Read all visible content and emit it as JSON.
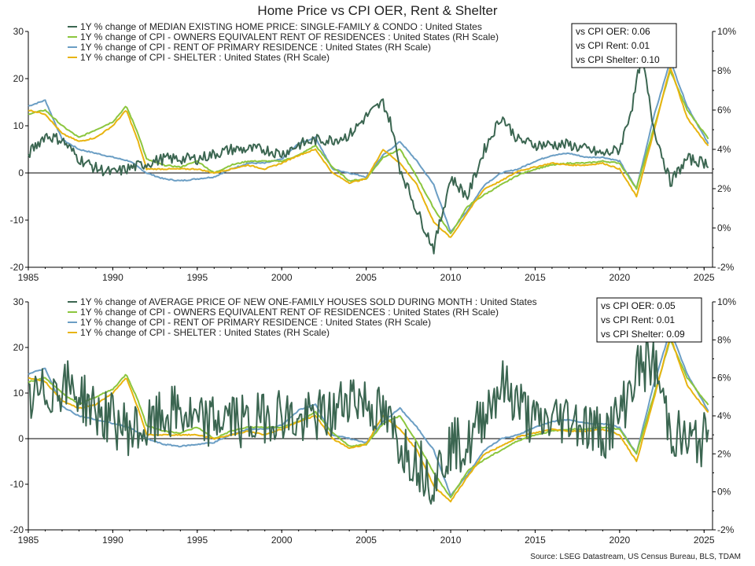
{
  "title": "Home Price vs CPI OER, Rent & Shelter",
  "source": "Source: LSEG Datastream, US Census Bureau, BLS, TDAM",
  "colors": {
    "home": "#3b6651",
    "oer": "#8cc63e",
    "rent": "#6b9ec4",
    "shelter": "#e8b410",
    "zero": "#000000"
  },
  "chart_data": [
    {
      "type": "line",
      "title": "",
      "xlabel": "",
      "ylabel": "",
      "xlim": [
        1985,
        2025.5
      ],
      "ylim": [
        -20,
        30
      ],
      "ylim_right": [
        -2,
        10
      ],
      "x_ticks": [
        "1985",
        "1990",
        "1995",
        "2000",
        "2005",
        "2010",
        "2015",
        "2020",
        "2025"
      ],
      "y_ticks_left": [
        "30",
        "20",
        "10",
        "0",
        "-10",
        "-20"
      ],
      "y_ticks_right": [
        "10%",
        "8%",
        "6%",
        "4%",
        "2%",
        "0%",
        "-2%"
      ],
      "legend": [
        {
          "label": "1Y % change of MEDIAN EXISTING HOME PRICE: SINGLE-FAMILY & CONDO : United States",
          "key": "home"
        },
        {
          "label": "1Y % change of CPI - OWNERS EQUIVALENT RENT OF RESIDENCES : United States (RH Scale)",
          "key": "oer"
        },
        {
          "label": "1Y % change of CPI - RENT OF PRIMARY RESIDENCE : United States (RH Scale)",
          "key": "rent"
        },
        {
          "label": "1Y % change of CPI - SHELTER : United States (RH Scale)",
          "key": "shelter"
        }
      ],
      "correlations": [
        "vs CPI OER: 0.06",
        "vs CPI Rent: 0.01",
        "vs CPI Shelter: 0.10"
      ],
      "series": [
        {
          "key": "home",
          "axis": "left",
          "noise": 1.2,
          "x": [
            1985,
            1986,
            1987,
            1988,
            1989,
            1990,
            1991,
            1992,
            1993,
            1994,
            1995,
            1996,
            1997,
            1998,
            1999,
            2000,
            2001,
            2002,
            2003,
            2004,
            2005,
            2006,
            2006.5,
            2007,
            2008,
            2009,
            2010,
            2011,
            2012,
            2013,
            2014,
            2015,
            2016,
            2017,
            2018,
            2019,
            2020,
            2020.8,
            2021.3,
            2022,
            2023,
            2024,
            2025.3
          ],
          "y": [
            4,
            8,
            7,
            3,
            1,
            0,
            1,
            2,
            3,
            3,
            3,
            4,
            5,
            5,
            5,
            4,
            6,
            7,
            7,
            8,
            12,
            15,
            10,
            1,
            -8,
            -16,
            -1,
            -5,
            5,
            12,
            7,
            6,
            6,
            6,
            5,
            4,
            5,
            15,
            25,
            10,
            -2,
            3,
            2
          ]
        },
        {
          "key": "oer",
          "axis": "right",
          "x": [
            1985,
            1986,
            1987,
            1988,
            1989,
            1990,
            1990.8,
            1991.5,
            1992,
            1993,
            1994,
            1995,
            1996,
            1997,
            1998,
            1999,
            2000,
            2001,
            2002,
            2003,
            2004,
            2005,
            2006,
            2007,
            2008,
            2009,
            2010,
            2011,
            2012,
            2013,
            2014,
            2015,
            2016,
            2017,
            2018,
            2019,
            2020,
            2021,
            2022,
            2023,
            2024,
            2025.3
          ],
          "y": [
            5.8,
            6,
            5.2,
            4.6,
            5.0,
            5.4,
            6.2,
            4.8,
            3.5,
            3.2,
            3.1,
            3.4,
            2.8,
            3.2,
            3.4,
            3.4,
            3.4,
            3.7,
            4.2,
            3.1,
            2.4,
            2.5,
            3.6,
            4.0,
            2.6,
            1.0,
            -0.3,
            1.1,
            1.7,
            2.2,
            2.7,
            3.0,
            3.2,
            3.3,
            3.3,
            3.4,
            3.3,
            2.0,
            5.0,
            8.0,
            6.0,
            4.5
          ]
        },
        {
          "key": "rent",
          "axis": "right",
          "x": [
            1985,
            1986,
            1987,
            1988,
            1989,
            1990,
            1991,
            1992,
            1993,
            1994,
            1995,
            1996,
            1997,
            1998,
            1999,
            2000,
            2001,
            2002,
            2003,
            2004,
            2005,
            2006,
            2007,
            2008,
            2009,
            2010,
            2011,
            2012,
            2013,
            2014,
            2015,
            2016,
            2017,
            2018,
            2019,
            2020,
            2021,
            2022,
            2023,
            2024,
            2025.3
          ],
          "y": [
            6.2,
            6.5,
            4.5,
            4.0,
            3.8,
            3.6,
            3.4,
            2.8,
            2.5,
            2.4,
            2.5,
            2.6,
            3.0,
            3.3,
            3.3,
            3.5,
            4.3,
            4.6,
            3.0,
            2.8,
            2.6,
            3.7,
            4.4,
            3.4,
            2.2,
            -0.2,
            0.9,
            2.2,
            2.8,
            3.0,
            3.4,
            3.7,
            3.8,
            3.6,
            3.6,
            3.4,
            2.0,
            5.6,
            8.5,
            6.2,
            4.2
          ]
        },
        {
          "key": "shelter",
          "axis": "right",
          "x": [
            1985,
            1986,
            1987,
            1988,
            1989,
            1990,
            1990.8,
            1991.5,
            1992,
            1993,
            1994,
            1995,
            1996,
            1997,
            1998,
            1999,
            2000,
            2001,
            2002,
            2003,
            2004,
            2005,
            2006,
            2007,
            2008,
            2009,
            2010,
            2011,
            2012,
            2013,
            2014,
            2015,
            2016,
            2017,
            2018,
            2019,
            2020,
            2021,
            2022,
            2023,
            2024,
            2025.3
          ],
          "y": [
            6.0,
            5.8,
            4.8,
            4.4,
            4.6,
            5.2,
            6.0,
            4.4,
            3.0,
            3.0,
            3.0,
            3.0,
            2.8,
            3.0,
            3.2,
            3.0,
            3.3,
            3.7,
            4.0,
            2.8,
            2.3,
            2.5,
            4.0,
            3.3,
            2.2,
            0.3,
            -0.5,
            0.8,
            2.0,
            2.4,
            2.9,
            3.1,
            3.3,
            3.2,
            3.2,
            3.3,
            3.0,
            1.6,
            4.8,
            8.2,
            5.6,
            4.1
          ]
        }
      ]
    },
    {
      "type": "line",
      "title": "",
      "xlabel": "",
      "ylabel": "",
      "xlim": [
        1985,
        2025.5
      ],
      "ylim": [
        -20,
        30
      ],
      "ylim_right": [
        -2,
        10
      ],
      "x_ticks": [
        "1985",
        "1990",
        "1995",
        "2000",
        "2005",
        "2010",
        "2015",
        "2020",
        "2025"
      ],
      "y_ticks_left": [
        "30",
        "20",
        "10",
        "0",
        "-10",
        "-20"
      ],
      "y_ticks_right": [
        "10%",
        "8%",
        "6%",
        "4%",
        "2%",
        "0%",
        "-2%"
      ],
      "legend": [
        {
          "label": "1Y % change of AVERAGE PRICE OF NEW ONE-FAMILY HOUSES SOLD DURING MONTH : United States",
          "key": "home"
        },
        {
          "label": "1Y % change of CPI - OWNERS EQUIVALENT RENT OF RESIDENCES : United States (RH Scale)",
          "key": "oer"
        },
        {
          "label": "1Y % change of CPI - RENT OF PRIMARY RESIDENCE : United States (RH Scale)",
          "key": "rent"
        },
        {
          "label": "1Y % change of CPI - SHELTER : United States (RH Scale)",
          "key": "shelter"
        }
      ],
      "correlations": [
        "vs CPI OER: 0.05",
        "vs CPI Rent: 0.01",
        "vs CPI Shelter: 0.09"
      ],
      "series": [
        {
          "key": "home",
          "axis": "left",
          "noise": 6,
          "x": [
            1985,
            1986,
            1987,
            1988,
            1989,
            1990,
            1991,
            1992,
            1993,
            1994,
            1995,
            1996,
            1997,
            1998,
            1999,
            2000,
            2001,
            2002,
            2003,
            2004,
            2005,
            2006,
            2007,
            2008,
            2009,
            2010,
            2011,
            2012,
            2013,
            2014,
            2015,
            2016,
            2017,
            2018,
            2019,
            2020,
            2021,
            2022,
            2023,
            2024,
            2025.3
          ],
          "y": [
            8,
            10,
            12,
            10,
            6,
            4,
            2,
            2,
            5,
            6,
            3,
            4,
            5,
            3,
            5,
            6,
            3,
            5,
            5,
            10,
            8,
            5,
            -1,
            -5,
            -9,
            -1,
            -2,
            6,
            12,
            8,
            3,
            4,
            5,
            3,
            1,
            5,
            15,
            17,
            2,
            -1,
            0
          ]
        },
        {
          "key": "oer",
          "axis": "right",
          "x": [
            1985,
            1986,
            1987,
            1988,
            1989,
            1990,
            1990.8,
            1991.5,
            1992,
            1993,
            1994,
            1995,
            1996,
            1997,
            1998,
            1999,
            2000,
            2001,
            2002,
            2003,
            2004,
            2005,
            2006,
            2007,
            2008,
            2009,
            2010,
            2011,
            2012,
            2013,
            2014,
            2015,
            2016,
            2017,
            2018,
            2019,
            2020,
            2021,
            2022,
            2023,
            2024,
            2025.3
          ],
          "y": [
            5.8,
            6,
            5.2,
            4.6,
            5.0,
            5.4,
            6.2,
            4.8,
            3.5,
            3.2,
            3.1,
            3.4,
            2.8,
            3.2,
            3.4,
            3.4,
            3.4,
            3.7,
            4.2,
            3.1,
            2.4,
            2.5,
            3.6,
            4.0,
            2.6,
            1.0,
            -0.3,
            1.1,
            1.7,
            2.2,
            2.7,
            3.0,
            3.2,
            3.3,
            3.3,
            3.4,
            3.3,
            2.0,
            5.0,
            8.0,
            6.0,
            4.5
          ]
        },
        {
          "key": "rent",
          "axis": "right",
          "x": [
            1985,
            1986,
            1987,
            1988,
            1989,
            1990,
            1991,
            1992,
            1993,
            1994,
            1995,
            1996,
            1997,
            1998,
            1999,
            2000,
            2001,
            2002,
            2003,
            2004,
            2005,
            2006,
            2007,
            2008,
            2009,
            2010,
            2011,
            2012,
            2013,
            2014,
            2015,
            2016,
            2017,
            2018,
            2019,
            2020,
            2021,
            2022,
            2023,
            2024,
            2025.3
          ],
          "y": [
            6.2,
            6.5,
            4.5,
            4.0,
            3.8,
            3.6,
            3.4,
            2.8,
            2.5,
            2.4,
            2.5,
            2.6,
            3.0,
            3.3,
            3.3,
            3.5,
            4.3,
            4.6,
            3.0,
            2.8,
            2.6,
            3.7,
            4.4,
            3.4,
            2.2,
            -0.2,
            0.9,
            2.2,
            2.8,
            3.0,
            3.4,
            3.7,
            3.8,
            3.6,
            3.6,
            3.4,
            2.0,
            5.6,
            8.5,
            6.2,
            4.2
          ]
        },
        {
          "key": "shelter",
          "axis": "right",
          "x": [
            1985,
            1986,
            1987,
            1988,
            1989,
            1990,
            1990.8,
            1991.5,
            1992,
            1993,
            1994,
            1995,
            1996,
            1997,
            1998,
            1999,
            2000,
            2001,
            2002,
            2003,
            2004,
            2005,
            2006,
            2007,
            2008,
            2009,
            2010,
            2011,
            2012,
            2013,
            2014,
            2015,
            2016,
            2017,
            2018,
            2019,
            2020,
            2021,
            2022,
            2023,
            2024,
            2025.3
          ],
          "y": [
            6.0,
            5.8,
            4.8,
            4.4,
            4.6,
            5.2,
            6.0,
            4.4,
            3.0,
            3.0,
            3.0,
            3.0,
            2.8,
            3.0,
            3.2,
            3.0,
            3.3,
            3.7,
            4.0,
            2.8,
            2.3,
            2.5,
            4.0,
            3.3,
            2.2,
            0.3,
            -0.5,
            0.8,
            2.0,
            2.4,
            2.9,
            3.1,
            3.3,
            3.2,
            3.2,
            3.3,
            3.0,
            1.6,
            4.8,
            8.2,
            5.6,
            4.1
          ]
        }
      ]
    }
  ]
}
